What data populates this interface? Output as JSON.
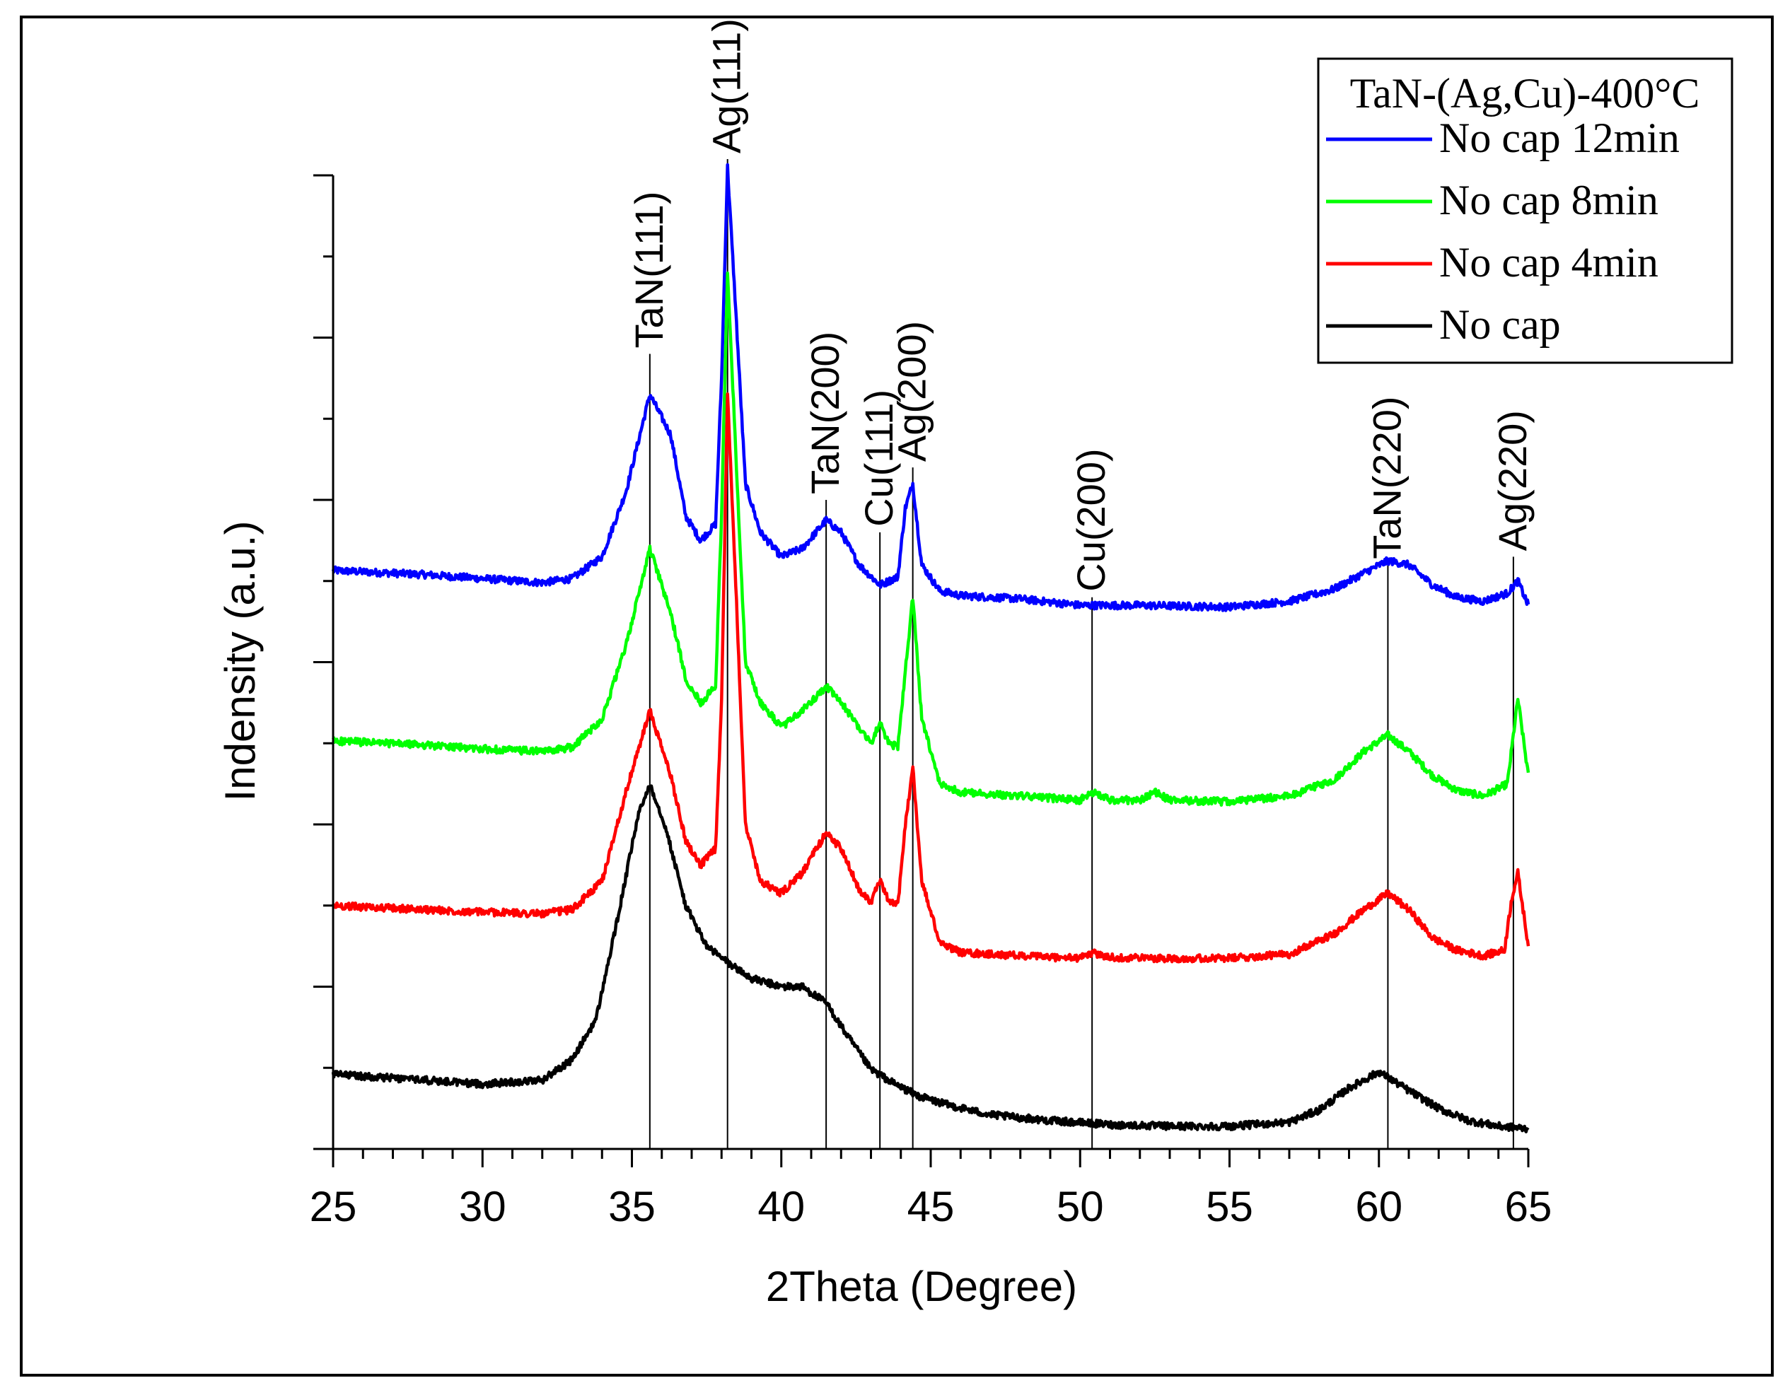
{
  "chart_data": {
    "type": "line",
    "title": "",
    "xlabel": "2Theta (Degree)",
    "ylabel": "Indensity (a.u.)",
    "xlim": [
      25,
      65
    ],
    "ylim": [
      0,
      12
    ],
    "xticks": [
      "25",
      "30",
      "35",
      "40",
      "45",
      "50",
      "55",
      "60",
      "65"
    ],
    "yticks_labeled": false,
    "grid": false,
    "legend": {
      "title": "TaN-(Ag,Cu)-400°C",
      "position": "top-right",
      "entries": [
        "No cap 12min",
        "No cap 8min",
        "No cap 4min",
        "No cap"
      ]
    },
    "reference_lines": [
      {
        "x": 35.6,
        "label": "TaN(111)",
        "top": 9.8
      },
      {
        "x": 38.2,
        "label": "Ag(111)",
        "top": 12.2
      },
      {
        "x": 41.5,
        "label": "TaN(200)",
        "top": 8.0
      },
      {
        "x": 43.3,
        "label": "Cu(111)",
        "top": 7.6
      },
      {
        "x": 44.4,
        "label": "Ag(200)",
        "top": 8.4
      },
      {
        "x": 50.4,
        "label": "Cu(200)",
        "top": 6.8
      },
      {
        "x": 60.3,
        "label": "TaN(220)",
        "top": 7.2
      },
      {
        "x": 64.5,
        "label": "Ag(220)",
        "top": 7.3
      }
    ],
    "series": [
      {
        "name": "No cap 12min",
        "color": "#0000ff",
        "x": [
          25,
          28,
          30,
          32,
          33,
          34,
          34.8,
          35.6,
          36.3,
          36.8,
          37.3,
          37.8,
          38.0,
          38.2,
          38.45,
          38.8,
          39.3,
          40,
          40.7,
          41.5,
          42,
          42.6,
          43.3,
          43.9,
          44.15,
          44.4,
          44.7,
          45.3,
          46,
          48,
          50,
          52,
          55,
          57,
          58.5,
          59.5,
          60.3,
          61,
          61.8,
          62.6,
          63.5,
          64.3,
          64.65,
          65
        ],
        "values": [
          7.13,
          7.08,
          7.03,
          6.98,
          7.03,
          7.3,
          8.1,
          9.3,
          8.8,
          7.8,
          7.5,
          7.7,
          9.5,
          12.1,
          10.5,
          8.2,
          7.6,
          7.3,
          7.4,
          7.75,
          7.6,
          7.2,
          6.95,
          7.05,
          7.9,
          8.2,
          7.2,
          6.88,
          6.82,
          6.78,
          6.7,
          6.7,
          6.68,
          6.75,
          6.9,
          7.1,
          7.25,
          7.2,
          6.95,
          6.8,
          6.75,
          6.85,
          7.0,
          6.7
        ]
      },
      {
        "name": "No cap 8min",
        "color": "#00ff00",
        "x": [
          25,
          28,
          30,
          32,
          33,
          34,
          34.8,
          35.6,
          36.3,
          36.8,
          37.3,
          37.8,
          38.0,
          38.2,
          38.45,
          38.8,
          39.3,
          40,
          40.7,
          41.5,
          42,
          42.6,
          43.0,
          43.3,
          43.6,
          43.9,
          44.15,
          44.4,
          44.7,
          45.3,
          46,
          48,
          50,
          50.4,
          51,
          52,
          52.5,
          53,
          55,
          57,
          58.5,
          59.5,
          60.3,
          61,
          61.8,
          62.6,
          63.5,
          64.3,
          64.65,
          65
        ],
        "values": [
          5.03,
          4.98,
          4.93,
          4.9,
          4.95,
          5.3,
          6.2,
          7.4,
          6.6,
          5.8,
          5.5,
          5.7,
          7.8,
          10.8,
          8.8,
          6.0,
          5.5,
          5.2,
          5.4,
          5.7,
          5.5,
          5.2,
          5.0,
          5.25,
          5.0,
          4.95,
          5.9,
          6.8,
          5.3,
          4.5,
          4.4,
          4.35,
          4.3,
          4.4,
          4.3,
          4.3,
          4.4,
          4.3,
          4.28,
          4.35,
          4.55,
          4.9,
          5.1,
          4.9,
          4.6,
          4.42,
          4.35,
          4.5,
          5.55,
          4.6
        ]
      },
      {
        "name": "No cap 4min",
        "color": "#ff0000",
        "x": [
          25,
          28,
          30,
          32,
          33,
          34,
          34.8,
          35.6,
          36.3,
          36.8,
          37.3,
          37.8,
          38.0,
          38.2,
          38.45,
          38.8,
          39.3,
          40,
          40.7,
          41.5,
          42,
          42.6,
          43.0,
          43.3,
          43.6,
          43.9,
          44.15,
          44.4,
          44.7,
          45.3,
          46,
          48,
          50,
          50.4,
          51,
          53,
          55,
          57,
          58.5,
          59.5,
          60.3,
          61,
          61.8,
          62.6,
          63.5,
          64.2,
          64.45,
          64.65,
          65
        ],
        "values": [
          3.0,
          2.95,
          2.92,
          2.9,
          2.95,
          3.3,
          4.4,
          5.4,
          4.6,
          3.8,
          3.5,
          3.7,
          5.5,
          9.3,
          7.2,
          4.0,
          3.3,
          3.15,
          3.4,
          3.9,
          3.7,
          3.2,
          3.05,
          3.3,
          3.05,
          3.0,
          4.0,
          4.7,
          3.3,
          2.55,
          2.42,
          2.38,
          2.35,
          2.42,
          2.36,
          2.35,
          2.35,
          2.4,
          2.65,
          2.95,
          3.15,
          2.95,
          2.6,
          2.45,
          2.38,
          2.45,
          3.1,
          3.4,
          2.5
        ]
      },
      {
        "name": "No cap",
        "color": "#000000",
        "x": [
          25,
          28,
          30,
          32,
          33,
          33.8,
          34.5,
          35.2,
          35.6,
          36.1,
          36.8,
          37.5,
          38.2,
          39,
          40,
          40.7,
          41.5,
          42.2,
          43,
          43.8,
          44.6,
          45.5,
          47,
          49,
          51,
          53,
          55,
          57,
          58,
          59,
          60,
          61,
          62,
          63,
          64,
          65
        ],
        "values": [
          0.92,
          0.85,
          0.8,
          0.85,
          1.1,
          1.6,
          2.8,
          4.1,
          4.5,
          4.0,
          3.0,
          2.5,
          2.3,
          2.1,
          2.0,
          2.0,
          1.8,
          1.4,
          0.98,
          0.8,
          0.65,
          0.55,
          0.42,
          0.35,
          0.3,
          0.28,
          0.28,
          0.33,
          0.48,
          0.75,
          0.95,
          0.72,
          0.5,
          0.35,
          0.28,
          0.25
        ]
      }
    ]
  }
}
